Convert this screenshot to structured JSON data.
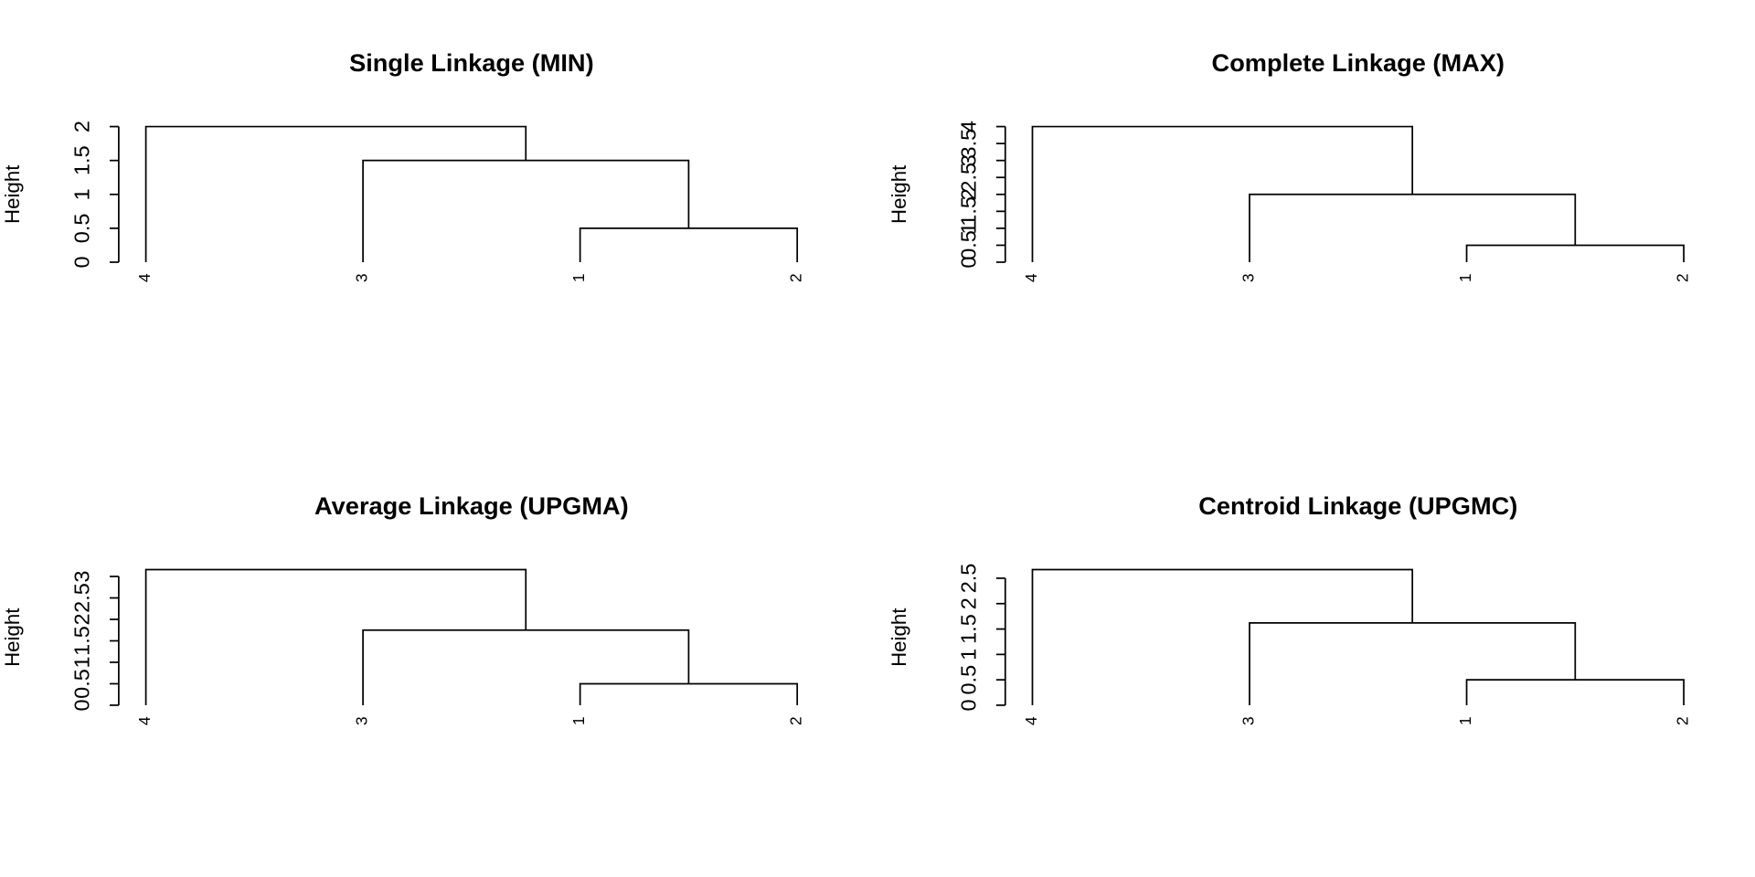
{
  "chart_data": [
    {
      "type": "dendrogram",
      "title": "Single Linkage (MIN)",
      "ylabel": "Height",
      "order": [
        4,
        3,
        1,
        2
      ],
      "merge": [
        [
          -1,
          -2
        ],
        [
          -3,
          1
        ],
        [
          -4,
          2
        ]
      ],
      "heights": [
        0.5,
        1.5,
        2
      ],
      "ylim": [
        0,
        2
      ],
      "yticks": [
        0,
        0.5,
        1,
        1.5,
        2
      ]
    },
    {
      "type": "dendrogram",
      "title": "Complete Linkage (MAX)",
      "ylabel": "Height",
      "order": [
        4,
        3,
        1,
        2
      ],
      "merge": [
        [
          -1,
          -2
        ],
        [
          -3,
          1
        ],
        [
          -4,
          2
        ]
      ],
      "heights": [
        0.5,
        2,
        4
      ],
      "ylim": [
        0,
        4
      ],
      "yticks": [
        0,
        0.5,
        1,
        1.5,
        2,
        2.5,
        3,
        3.5,
        4
      ]
    },
    {
      "type": "dendrogram",
      "title": "Average Linkage (UPGMA)",
      "ylabel": "Height",
      "order": [
        4,
        3,
        1,
        2
      ],
      "merge": [
        [
          -1,
          -2
        ],
        [
          -3,
          1
        ],
        [
          -4,
          2
        ]
      ],
      "heights": [
        0.5,
        1.75,
        3.16
      ],
      "ylim": [
        0,
        3.16
      ],
      "yticks": [
        0,
        0.5,
        1,
        1.5,
        2,
        2.5,
        3
      ]
    },
    {
      "type": "dendrogram",
      "title": "Centroid Linkage (UPGMC)",
      "ylabel": "Height",
      "order": [
        4,
        3,
        1,
        2
      ],
      "merge": [
        [
          -1,
          -2
        ],
        [
          -3,
          1
        ],
        [
          -4,
          2
        ]
      ],
      "heights": [
        0.5,
        1.62,
        2.67
      ],
      "ylim": [
        0,
        2.67
      ],
      "yticks": [
        0,
        0.5,
        1,
        1.5,
        2,
        2.5
      ]
    }
  ]
}
